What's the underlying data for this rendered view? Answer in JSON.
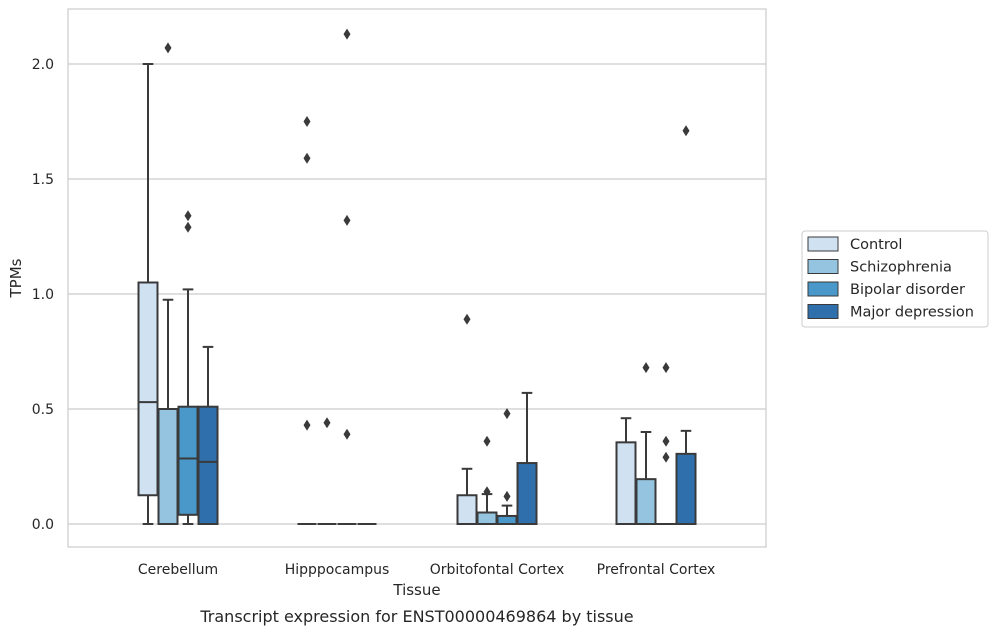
{
  "chart_data": {
    "type": "box",
    "xlabel": "Tissue",
    "ylabel": "TPMs",
    "caption": "Transcript expression for ENST00000469864 by tissue",
    "ylim": [
      -0.1,
      2.25
    ],
    "yticks": [
      "0.0",
      "0.5",
      "1.0",
      "1.5",
      "2.0"
    ],
    "grid": "horizontal",
    "legend_position": "right",
    "categories": [
      "Cerebellum",
      "Hipppocampus",
      "Orbitofontal Cortex",
      "Prefrontal Cortex"
    ],
    "series": [
      {
        "name": "Control",
        "color": "#d0e1f2",
        "boxes": [
          {
            "min": 0.0,
            "q1": 0.125,
            "median": 0.53,
            "q3": 1.05,
            "max": 2.0,
            "outliers": []
          },
          {
            "min": 0.0,
            "q1": 0.0,
            "median": 0.0,
            "q3": 0.0,
            "max": 0.0,
            "outliers": [
              0.43,
              1.59,
              1.75
            ]
          },
          {
            "min": 0.0,
            "q1": 0.0,
            "median": 0.0,
            "q3": 0.125,
            "max": 0.24,
            "outliers": [
              0.89
            ]
          },
          {
            "min": 0.0,
            "q1": 0.0,
            "median": 0.0,
            "q3": 0.355,
            "max": 0.46,
            "outliers": []
          }
        ]
      },
      {
        "name": "Schizophrenia",
        "color": "#94c4df",
        "boxes": [
          {
            "min": 0.0,
            "q1": 0.0,
            "median": 0.0,
            "q3": 0.5,
            "max": 0.975,
            "outliers": [
              2.07
            ]
          },
          {
            "min": 0.0,
            "q1": 0.0,
            "median": 0.0,
            "q3": 0.0,
            "max": 0.0,
            "outliers": [
              0.44
            ]
          },
          {
            "min": 0.0,
            "q1": 0.0,
            "median": 0.0,
            "q3": 0.05,
            "max": 0.13,
            "outliers": [
              0.14,
              0.36
            ]
          },
          {
            "min": 0.0,
            "q1": 0.0,
            "median": 0.0,
            "q3": 0.195,
            "max": 0.4,
            "outliers": [
              0.68
            ]
          }
        ]
      },
      {
        "name": "Bipolar disorder",
        "color": "#4a98c9",
        "boxes": [
          {
            "min": 0.0,
            "q1": 0.04,
            "median": 0.285,
            "q3": 0.51,
            "max": 1.02,
            "outliers": [
              1.29,
              1.34
            ]
          },
          {
            "min": 0.0,
            "q1": 0.0,
            "median": 0.0,
            "q3": 0.0,
            "max": 0.0,
            "outliers": [
              0.39,
              1.32,
              2.13
            ]
          },
          {
            "min": 0.0,
            "q1": 0.0,
            "median": 0.0,
            "q3": 0.035,
            "max": 0.08,
            "outliers": [
              0.12,
              0.48
            ]
          },
          {
            "min": 0.0,
            "q1": 0.0,
            "median": 0.0,
            "q3": 0.0,
            "max": 0.0,
            "outliers": [
              0.29,
              0.36,
              0.68
            ]
          }
        ]
      },
      {
        "name": "Major depression",
        "color": "#2e6fac",
        "boxes": [
          {
            "min": 0.0,
            "q1": 0.0,
            "median": 0.27,
            "q3": 0.51,
            "max": 0.77,
            "outliers": []
          },
          {
            "min": 0.0,
            "q1": 0.0,
            "median": 0.0,
            "q3": 0.0,
            "max": 0.0,
            "outliers": []
          },
          {
            "min": 0.0,
            "q1": 0.0,
            "median": 0.0,
            "q3": 0.265,
            "max": 0.57,
            "outliers": []
          },
          {
            "min": 0.0,
            "q1": 0.0,
            "median": 0.0,
            "q3": 0.305,
            "max": 0.405,
            "outliers": [
              1.71
            ]
          }
        ]
      }
    ]
  }
}
